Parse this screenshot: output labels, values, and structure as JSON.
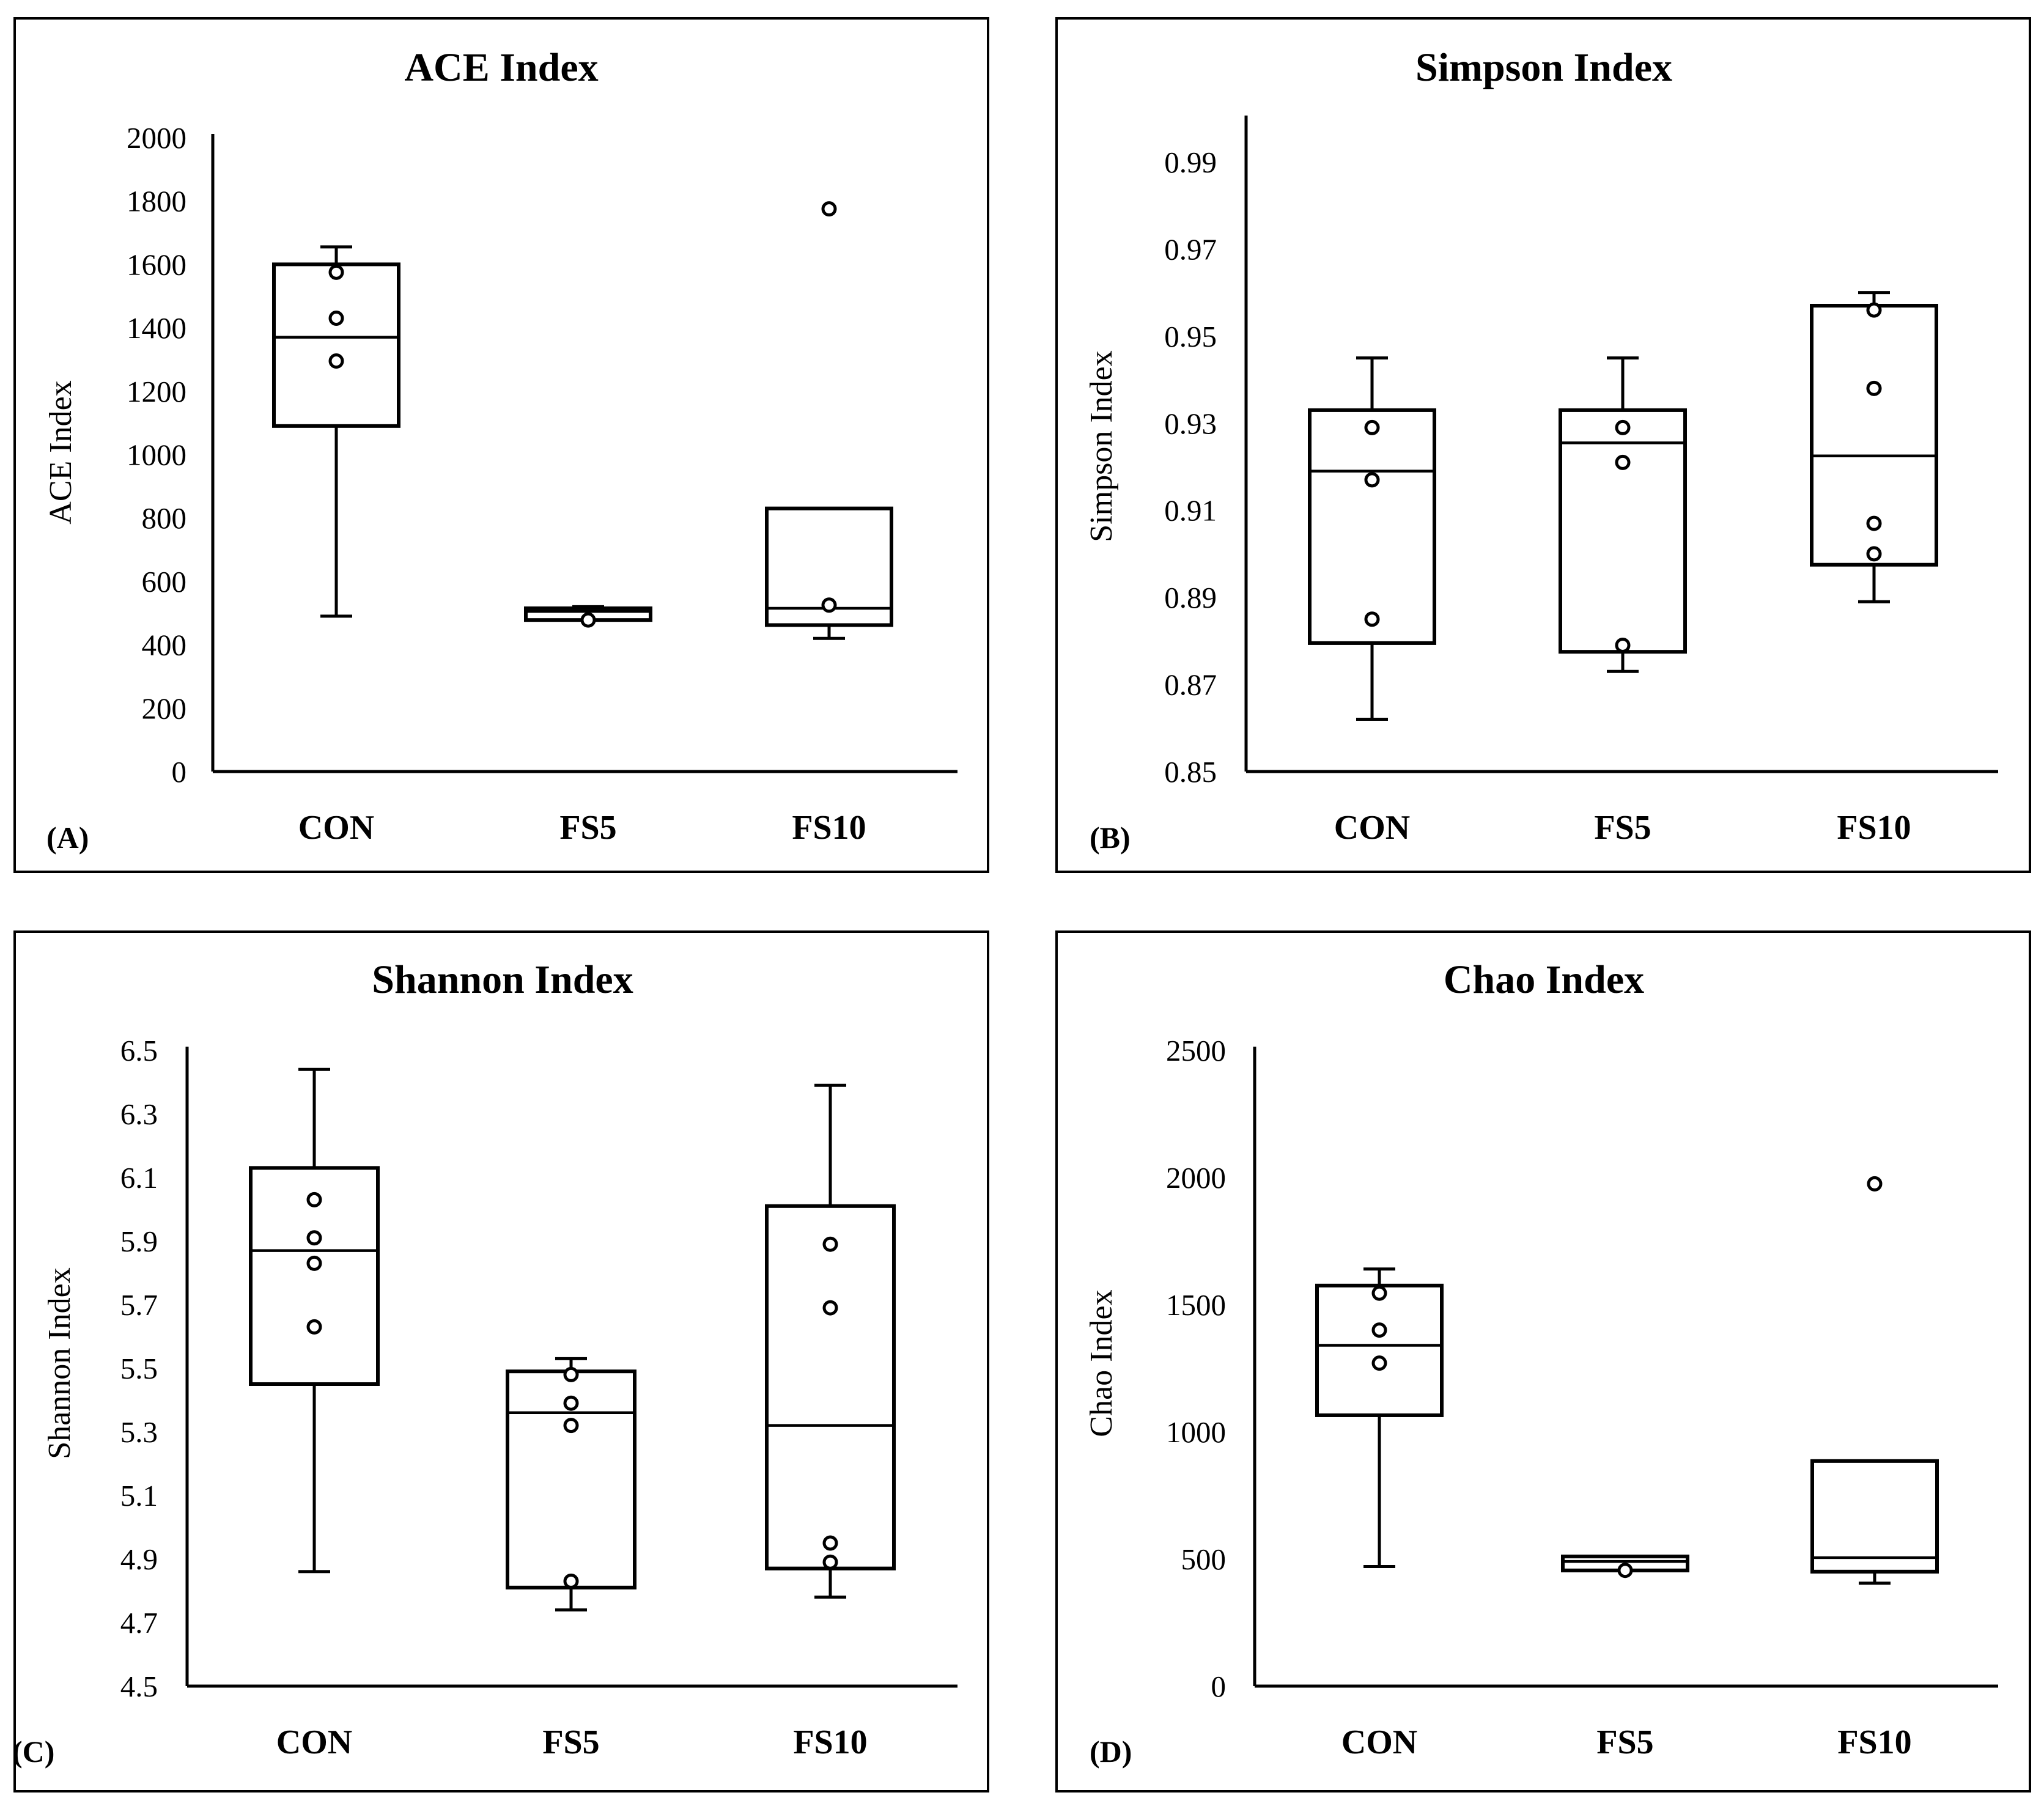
{
  "chart_data": [
    {
      "type": "box",
      "panel_label": "(A)",
      "title": "ACE Index",
      "ylabel": "ACE Index",
      "xlabel": "",
      "ylim": [
        0,
        2000
      ],
      "yticks": [
        "0",
        "200",
        "400",
        "600",
        "800",
        "1000",
        "1200",
        "1400",
        "1600",
        "1800",
        "2000"
      ],
      "categories": [
        "CON",
        "FS5",
        "FS10"
      ],
      "boxes": [
        {
          "category": "CON",
          "min": 490,
          "q1": 1090,
          "median": 1370,
          "q3": 1600,
          "max": 1655,
          "points": [
            1295,
            1430,
            1575
          ]
        },
        {
          "category": "FS5",
          "min": 478,
          "q1": 478,
          "median": 505,
          "q3": 515,
          "max": 520,
          "points": [
            478
          ]
        },
        {
          "category": "FS10",
          "min": 420,
          "q1": 462,
          "median": 515,
          "q3": 830,
          "max": 830,
          "points": [
            525,
            1775
          ]
        }
      ]
    },
    {
      "type": "box",
      "panel_label": "(B)",
      "title": "Simpson Index",
      "ylabel": "Simpson Index",
      "xlabel": "",
      "ylim": [
        0.85,
        1.0
      ],
      "yticks": [
        "0.85",
        "0.87",
        "0.89",
        "0.91",
        "0.93",
        "0.95",
        "0.97",
        "0.99"
      ],
      "categories": [
        "CON",
        "FS5",
        "FS10"
      ],
      "boxes": [
        {
          "category": "CON",
          "min": 0.862,
          "q1": 0.8795,
          "median": 0.919,
          "q3": 0.933,
          "max": 0.945,
          "points": [
            0.885,
            0.917,
            0.929
          ]
        },
        {
          "category": "FS5",
          "min": 0.873,
          "q1": 0.8775,
          "median": 0.9255,
          "q3": 0.933,
          "max": 0.945,
          "points": [
            0.879,
            0.921,
            0.929
          ]
        },
        {
          "category": "FS10",
          "min": 0.889,
          "q1": 0.8975,
          "median": 0.9225,
          "q3": 0.957,
          "max": 0.96,
          "points": [
            0.9,
            0.907,
            0.938,
            0.956
          ]
        }
      ]
    },
    {
      "type": "box",
      "panel_label": "(C)",
      "title": "Shannon Index",
      "ylabel": "Shannon Index",
      "xlabel": "",
      "ylim": [
        4.5,
        6.5
      ],
      "yticks": [
        "4.5",
        "4.7",
        "4.9",
        "5.1",
        "5.3",
        "5.5",
        "5.7",
        "5.9",
        "6.1",
        "6.3",
        "6.5"
      ],
      "categories": [
        "CON",
        "FS5",
        "FS10"
      ],
      "boxes": [
        {
          "category": "CON",
          "min": 4.86,
          "q1": 5.45,
          "median": 5.87,
          "q3": 6.13,
          "max": 6.44,
          "points": [
            5.63,
            5.83,
            5.91,
            6.03
          ]
        },
        {
          "category": "FS5",
          "min": 4.74,
          "q1": 4.81,
          "median": 5.36,
          "q3": 5.49,
          "max": 5.53,
          "points": [
            4.83,
            5.32,
            5.39,
            5.48
          ]
        },
        {
          "category": "FS10",
          "min": 4.78,
          "q1": 4.87,
          "median": 5.32,
          "q3": 6.01,
          "max": 6.39,
          "points": [
            4.89,
            4.95,
            5.69,
            5.89
          ]
        }
      ]
    },
    {
      "type": "box",
      "panel_label": "(D)",
      "title": "Chao Index",
      "ylabel": "Chao Index",
      "xlabel": "",
      "ylim": [
        0,
        2500
      ],
      "yticks": [
        "0",
        "500",
        "1000",
        "1500",
        "2000",
        "2500"
      ],
      "categories": [
        "CON",
        "FS5",
        "FS10"
      ],
      "boxes": [
        {
          "category": "CON",
          "min": 470,
          "q1": 1065,
          "median": 1340,
          "q3": 1575,
          "max": 1640,
          "points": [
            1270,
            1400,
            1545
          ]
        },
        {
          "category": "FS5",
          "min": 455,
          "q1": 455,
          "median": 490,
          "q3": 510,
          "max": 510,
          "points": [
            455
          ]
        },
        {
          "category": "FS10",
          "min": 405,
          "q1": 450,
          "median": 505,
          "q3": 885,
          "max": 885,
          "points": [
            1975
          ]
        }
      ]
    }
  ]
}
